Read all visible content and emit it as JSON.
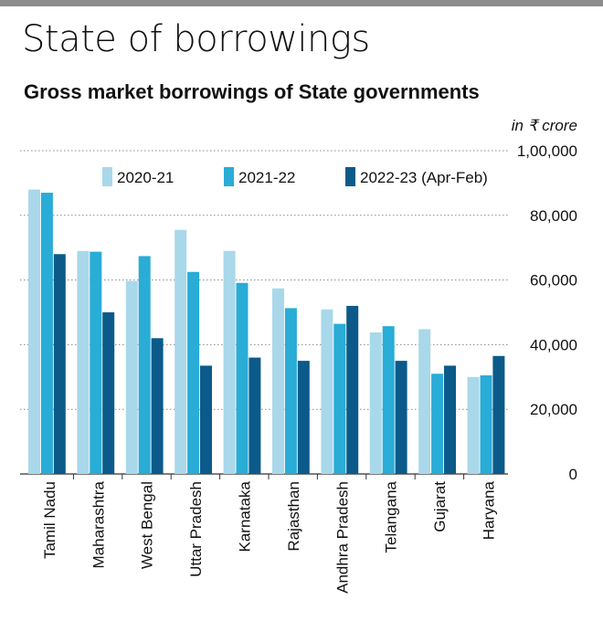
{
  "title": "State of borrowings",
  "subtitle": "Gross market borrowings of State governments",
  "colors": {
    "s2020": "#a9d8ea",
    "s2021": "#29acd6",
    "s2022": "#0b5a8a",
    "gridline": "#888888",
    "text": "#111111"
  },
  "chart_data": {
    "type": "bar",
    "title": "Gross market borrowings of State governments",
    "unit_label": "in ₹ crore",
    "categories": [
      "Tamil Nadu",
      "Maharashtra",
      "West Bengal",
      "Uttar Pradesh",
      "Karnataka",
      "Rajasthan",
      "Andhra Pradesh",
      "Telangana",
      "Gujarat",
      "Haryana"
    ],
    "series": [
      {
        "name": "2020-21",
        "values": [
          87977,
          69000,
          59680,
          75500,
          69000,
          57400,
          50896,
          43784,
          44780,
          30000
        ]
      },
      {
        "name": "2021-22",
        "values": [
          87000,
          68750,
          67390,
          62500,
          59100,
          51300,
          46443,
          45716,
          31000,
          30500
        ]
      },
      {
        "name": "2022-23 (Apr-Feb)",
        "values": [
          68000,
          50000,
          42000,
          33500,
          36000,
          35000,
          52000,
          35000,
          33500,
          36500
        ]
      }
    ],
    "ylim": [
      0,
      100000
    ],
    "yticks": [
      0,
      20000,
      40000,
      60000,
      80000,
      100000
    ],
    "ytick_labels": [
      "0",
      "20,000",
      "40,000",
      "60,000",
      "80,000",
      "1,00,000"
    ],
    "grid": "dotted horizontal",
    "legend": "top-left"
  }
}
